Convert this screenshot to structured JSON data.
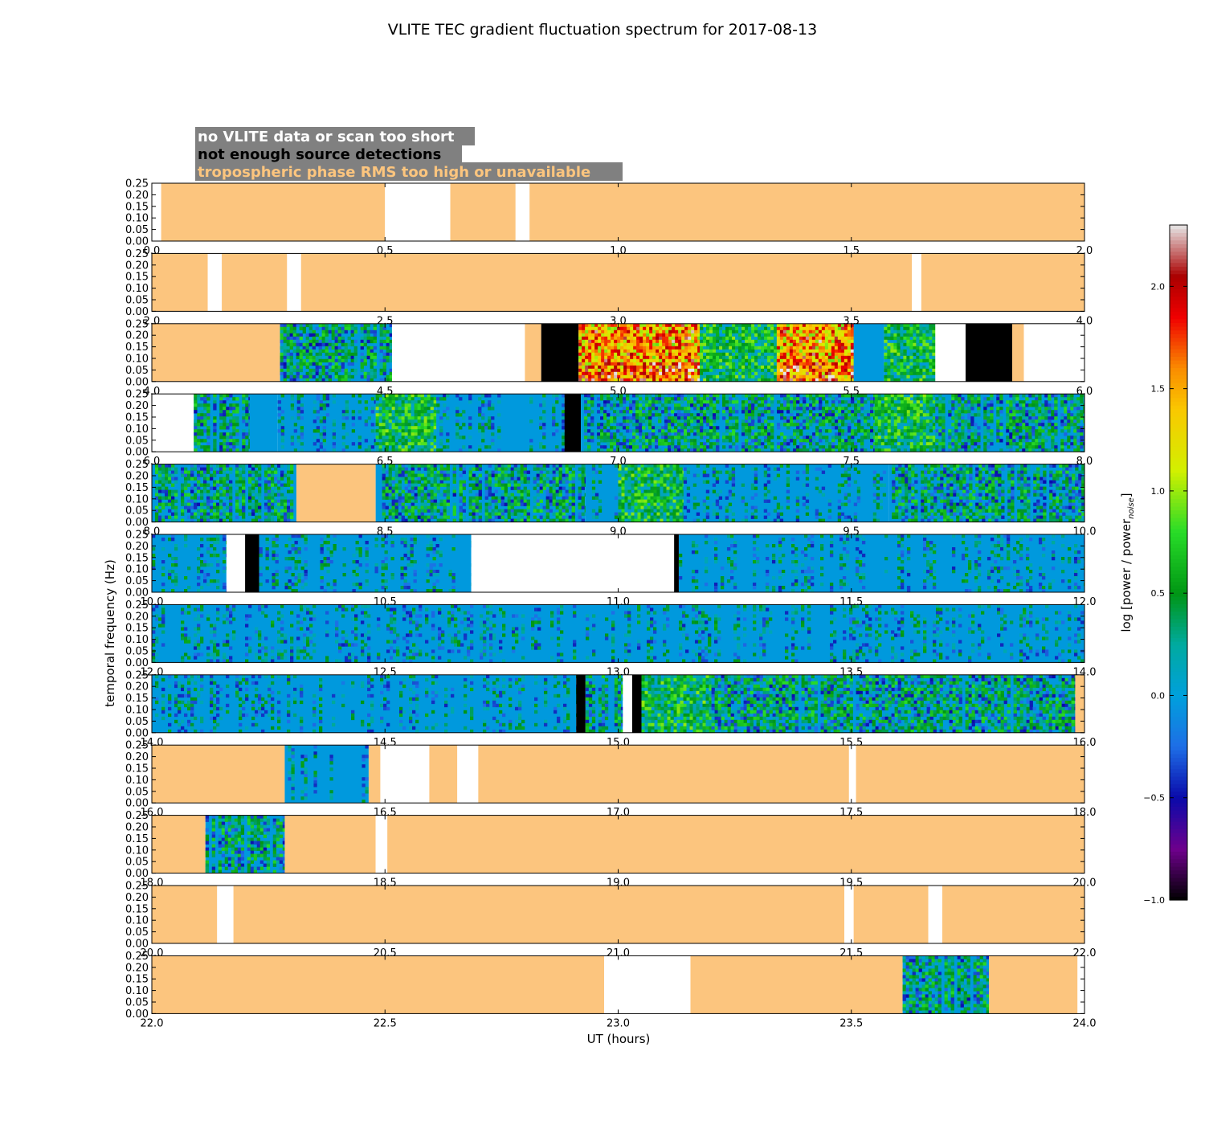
{
  "chart_data": {
    "type": "heatmap",
    "title": "VLITE TEC gradient fluctuation spectrum for 2017-08-13",
    "xlabel": "UT (hours)",
    "ylabel": "temporal frequency (Hz)",
    "colorbar_label": "log [power / power",
    "colorbar_label_sub": "noise",
    "colorbar_label_end": "]",
    "colorbar_range": [
      -1.0,
      2.3
    ],
    "colorbar_ticks": [
      "−1.0",
      "−0.5",
      "0.0",
      "0.5",
      "1.0",
      "1.5",
      "2.0"
    ],
    "colorbar_tick_values": [
      -1.0,
      -0.5,
      0.0,
      0.5,
      1.0,
      1.5,
      2.0
    ],
    "ylim": [
      0,
      0.25
    ],
    "yticks": [
      "0.00",
      "0.05",
      "0.10",
      "0.15",
      "0.20",
      "0.25"
    ],
    "status_colors": {
      "no_data": "#ffffff",
      "not_enough": "#000000",
      "tropo": "#fcc57e",
      "baseline": "#0099dd"
    },
    "legend": [
      {
        "text": "no VLITE data or scan too short",
        "color": "#ffffff"
      },
      {
        "text": "not enough source detections",
        "color": "#000000"
      },
      {
        "text": "tropospheric phase RMS too high or unavailable",
        "color": "#fcc57e"
      }
    ],
    "legend_background": "#808080",
    "panels": [
      {
        "xrange": [
          0,
          2
        ],
        "xticks": [
          "0.0",
          "0.5",
          "1.0",
          "1.5",
          "2.0"
        ],
        "segments": [
          [
            0.0,
            0.02,
            "no_data"
          ],
          [
            0.02,
            0.5,
            "tropo"
          ],
          [
            0.5,
            0.64,
            "no_data"
          ],
          [
            0.64,
            0.78,
            "tropo"
          ],
          [
            0.78,
            0.81,
            "no_data"
          ],
          [
            0.81,
            2.0,
            "tropo"
          ]
        ]
      },
      {
        "xrange": [
          2,
          4
        ],
        "xticks": [
          "2.0",
          "2.5",
          "3.0",
          "3.5",
          "4.0"
        ],
        "segments": [
          [
            2.0,
            2.12,
            "tropo"
          ],
          [
            2.12,
            2.15,
            "no_data"
          ],
          [
            2.15,
            2.29,
            "tropo"
          ],
          [
            2.29,
            2.32,
            "no_data"
          ],
          [
            2.32,
            3.63,
            "tropo"
          ],
          [
            3.63,
            3.65,
            "no_data"
          ],
          [
            3.65,
            4.0,
            "tropo"
          ]
        ]
      },
      {
        "xrange": [
          4,
          6
        ],
        "xticks": [
          "4.0",
          "4.5",
          "5.0",
          "5.5",
          "6.0"
        ],
        "segments": [
          [
            4.0,
            4.275,
            "tropo"
          ],
          [
            4.275,
            4.515,
            "data_low"
          ],
          [
            4.515,
            4.8,
            "no_data"
          ],
          [
            4.8,
            4.835,
            "tropo"
          ],
          [
            4.835,
            4.915,
            "not_enough"
          ],
          [
            4.915,
            5.175,
            "data_high"
          ],
          [
            5.175,
            5.34,
            "data_mid"
          ],
          [
            5.34,
            5.505,
            "data_high"
          ],
          [
            5.505,
            5.57,
            "baseline"
          ],
          [
            5.57,
            5.68,
            "data_mid"
          ],
          [
            5.68,
            5.745,
            "no_data"
          ],
          [
            5.745,
            5.845,
            "not_enough"
          ],
          [
            5.845,
            5.87,
            "tropo"
          ],
          [
            5.87,
            6.0,
            "no_data"
          ]
        ]
      },
      {
        "xrange": [
          6,
          8
        ],
        "xticks": [
          "6.0",
          "6.5",
          "7.0",
          "7.5",
          "8.0"
        ],
        "segments": [
          [
            6.0,
            6.09,
            "no_data"
          ],
          [
            6.09,
            6.21,
            "data_low"
          ],
          [
            6.21,
            6.27,
            "baseline"
          ],
          [
            6.27,
            6.48,
            "data_sparse"
          ],
          [
            6.48,
            6.61,
            "data_mid"
          ],
          [
            6.61,
            6.885,
            "data_sparse"
          ],
          [
            6.885,
            6.92,
            "not_enough"
          ],
          [
            6.92,
            7.55,
            "data_low"
          ],
          [
            7.55,
            7.68,
            "data_mid"
          ],
          [
            7.68,
            8.0,
            "data_low"
          ]
        ]
      },
      {
        "xrange": [
          8,
          10
        ],
        "xticks": [
          "8.0",
          "8.5",
          "9.0",
          "9.5",
          "10.0"
        ],
        "segments": [
          [
            8.0,
            8.31,
            "data_low"
          ],
          [
            8.31,
            8.48,
            "tropo"
          ],
          [
            8.48,
            8.93,
            "data_low"
          ],
          [
            8.93,
            9.0,
            "data_sparse"
          ],
          [
            9.0,
            9.14,
            "data_mid"
          ],
          [
            9.14,
            9.58,
            "data_sparse"
          ],
          [
            9.58,
            10.0,
            "data_low"
          ]
        ]
      },
      {
        "xrange": [
          10,
          12
        ],
        "xticks": [
          "10.0",
          "10.5",
          "11.0",
          "11.5",
          "12.0"
        ],
        "segments": [
          [
            10.0,
            10.16,
            "data_sparse"
          ],
          [
            10.16,
            10.2,
            "no_data"
          ],
          [
            10.2,
            10.23,
            "not_enough"
          ],
          [
            10.23,
            10.685,
            "data_sparse"
          ],
          [
            10.685,
            11.12,
            "no_data"
          ],
          [
            11.12,
            11.13,
            "not_enough"
          ],
          [
            11.13,
            12.0,
            "data_sparse"
          ]
        ]
      },
      {
        "xrange": [
          12,
          14
        ],
        "xticks": [
          "12.0",
          "12.5",
          "13.0",
          "13.5",
          "14.0"
        ],
        "segments": [
          [
            12.0,
            14.0,
            "data_sparse"
          ]
        ]
      },
      {
        "xrange": [
          14,
          16
        ],
        "xticks": [
          "14.0",
          "14.5",
          "15.0",
          "15.5",
          "16.0"
        ],
        "segments": [
          [
            14.0,
            14.91,
            "data_sparse"
          ],
          [
            14.91,
            14.93,
            "not_enough"
          ],
          [
            14.93,
            15.01,
            "data_low"
          ],
          [
            15.01,
            15.03,
            "no_data"
          ],
          [
            15.03,
            15.05,
            "not_enough"
          ],
          [
            15.05,
            15.2,
            "data_mid"
          ],
          [
            15.2,
            15.98,
            "data_low"
          ],
          [
            15.98,
            16.0,
            "tropo"
          ]
        ]
      },
      {
        "xrange": [
          16,
          18
        ],
        "xticks": [
          "16.0",
          "16.5",
          "17.0",
          "17.5",
          "18.0"
        ],
        "segments": [
          [
            16.0,
            16.285,
            "tropo"
          ],
          [
            16.285,
            16.465,
            "data_sparse"
          ],
          [
            16.465,
            16.49,
            "tropo"
          ],
          [
            16.49,
            16.595,
            "no_data"
          ],
          [
            16.595,
            16.655,
            "tropo"
          ],
          [
            16.655,
            16.7,
            "no_data"
          ],
          [
            16.7,
            17.495,
            "tropo"
          ],
          [
            17.495,
            17.51,
            "no_data"
          ],
          [
            17.51,
            18.0,
            "tropo"
          ]
        ]
      },
      {
        "xrange": [
          18,
          20
        ],
        "xticks": [
          "18.0",
          "18.5",
          "19.0",
          "19.5",
          "20.0"
        ],
        "segments": [
          [
            18.0,
            18.115,
            "tropo"
          ],
          [
            18.115,
            18.285,
            "data_low"
          ],
          [
            18.285,
            18.48,
            "tropo"
          ],
          [
            18.48,
            18.505,
            "no_data"
          ],
          [
            18.505,
            20.0,
            "tropo"
          ]
        ]
      },
      {
        "xrange": [
          20,
          22
        ],
        "xticks": [
          "20.0",
          "20.5",
          "21.0",
          "21.5",
          "22.0"
        ],
        "segments": [
          [
            20.0,
            20.14,
            "tropo"
          ],
          [
            20.14,
            20.175,
            "no_data"
          ],
          [
            20.175,
            21.485,
            "tropo"
          ],
          [
            21.485,
            21.505,
            "no_data"
          ],
          [
            21.505,
            21.665,
            "tropo"
          ],
          [
            21.665,
            21.695,
            "no_data"
          ],
          [
            21.695,
            22.0,
            "tropo"
          ]
        ]
      },
      {
        "xrange": [
          22,
          24
        ],
        "xticks": [
          "22.0",
          "22.5",
          "23.0",
          "23.5",
          "24.0"
        ],
        "segments": [
          [
            22.0,
            22.97,
            "tropo"
          ],
          [
            22.97,
            23.155,
            "no_data"
          ],
          [
            23.155,
            23.61,
            "tropo"
          ],
          [
            23.61,
            23.795,
            "data_low"
          ],
          [
            23.795,
            23.985,
            "tropo"
          ],
          [
            23.985,
            24.0,
            "no_data"
          ]
        ]
      }
    ]
  }
}
